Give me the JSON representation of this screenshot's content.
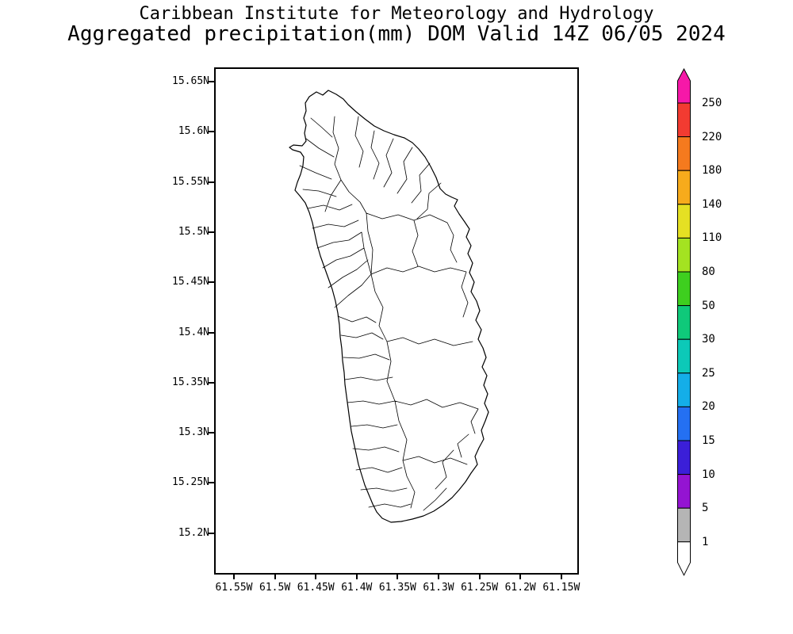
{
  "header": {
    "title_line1": "Caribbean Institute for Meteorology and Hydrology",
    "title_line2": "Aggregated precipitation(mm) DOM Valid 14Z 06/05 2024"
  },
  "chart_data": {
    "type": "map",
    "map_kind": "precipitation analysis with watershed boundaries",
    "organization": "Caribbean Institute for Meteorology and Hydrology",
    "title": "Aggregated precipitation(mm) DOM Valid 14Z 06/05 2024",
    "variable": "Aggregated precipitation",
    "units": "mm",
    "region_code": "DOM",
    "region_name": "Dominica",
    "valid_time": "14Z 06/05 2024",
    "lat_axis": {
      "ticks": [
        "15.65N",
        "15.6N",
        "15.55N",
        "15.5N",
        "15.45N",
        "15.4N",
        "15.35N",
        "15.3N",
        "15.25N",
        "15.2N"
      ],
      "range": [
        "15.2N",
        "15.65N"
      ]
    },
    "lon_axis": {
      "ticks": [
        "61.55W",
        "61.5W",
        "61.45W",
        "61.4W",
        "61.35W",
        "61.3W",
        "61.25W",
        "61.2W",
        "61.15W"
      ],
      "range": [
        "61.55W",
        "61.15W"
      ]
    },
    "shading": "No precipitation shading visible; island interior white (below lowest contour level 1 mm), drawn with black coastline and watershed boundary lines",
    "colorbar": {
      "levels_top_to_bottom": [
        "250",
        "220",
        "180",
        "140",
        "110",
        "80",
        "50",
        "30",
        "25",
        "20",
        "15",
        "10",
        "5",
        "1"
      ],
      "segment_colors_top_to_bottom": [
        "#f618a8",
        "#f23b31",
        "#f57a1e",
        "#f7ab1c",
        "#e5e023",
        "#a4e321",
        "#3ecf1f",
        "#0fc97a",
        "#0cc9b8",
        "#14aee8",
        "#2470f2",
        "#3b1fd8",
        "#9414d2",
        "#b5b5b5",
        "#ffffff"
      ],
      "top_arrow_meaning": "> 250",
      "bottom_arrow_meaning": "< 1"
    }
  }
}
